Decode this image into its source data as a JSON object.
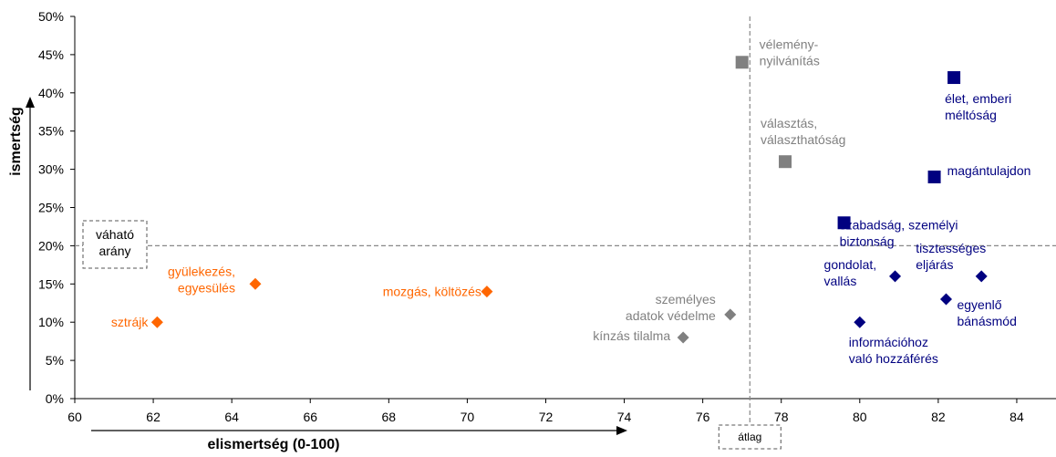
{
  "chart_data": {
    "type": "scatter",
    "xlabel": "elismertség (0-100)",
    "ylabel": "ismertség",
    "xlim": [
      60,
      85
    ],
    "ylim": [
      0,
      50
    ],
    "x_ticks": [
      60,
      62,
      64,
      66,
      68,
      70,
      72,
      74,
      76,
      78,
      80,
      82,
      84
    ],
    "y_ticks": [
      0,
      5,
      10,
      15,
      20,
      25,
      30,
      35,
      40,
      45,
      50
    ],
    "y_tick_suffix": "%",
    "grid": false,
    "legend": "none",
    "reference_lines": [
      {
        "axis": "x",
        "value": 77.2,
        "label": "átlag",
        "style": "dashed"
      },
      {
        "axis": "y",
        "value": 20,
        "label": "váható arány",
        "style": "dashed"
      }
    ],
    "colors": {
      "orange": "#ff6600",
      "gray": "#808080",
      "navy": "#000080"
    },
    "points": [
      {
        "label": "sztrájk",
        "x": 62.1,
        "y": 10,
        "color": "orange",
        "marker": "diamond"
      },
      {
        "label": "gyülekezés, egyesülés",
        "x": 64.6,
        "y": 15,
        "color": "orange",
        "marker": "diamond"
      },
      {
        "label": "mozgás, költözés",
        "x": 70.5,
        "y": 14,
        "color": "orange",
        "marker": "diamond"
      },
      {
        "label": "kínzás tilalma",
        "x": 75.5,
        "y": 8,
        "color": "gray",
        "marker": "diamond"
      },
      {
        "label": "személyes adatok védelme",
        "x": 76.7,
        "y": 11,
        "color": "gray",
        "marker": "diamond"
      },
      {
        "label": "vélemény-nyilvánítás",
        "x": 77.0,
        "y": 44,
        "color": "gray",
        "marker": "square"
      },
      {
        "label": "választás, választhatóság",
        "x": 78.1,
        "y": 31,
        "color": "gray",
        "marker": "square"
      },
      {
        "label": "szabadság, személyi biztonság",
        "x": 79.6,
        "y": 23,
        "color": "navy",
        "marker": "square"
      },
      {
        "label": "magántulajdon",
        "x": 81.9,
        "y": 29,
        "color": "navy",
        "marker": "square"
      },
      {
        "label": "élet, emberi méltóság",
        "x": 82.4,
        "y": 42,
        "color": "navy",
        "marker": "square"
      },
      {
        "label": "gondolat, vallás",
        "x": 80.9,
        "y": 16,
        "color": "navy",
        "marker": "diamond"
      },
      {
        "label": "tisztességes eljárás",
        "x": 83.1,
        "y": 16,
        "color": "navy",
        "marker": "diamond"
      },
      {
        "label": "egyenlő bánásmód",
        "x": 82.2,
        "y": 13,
        "color": "navy",
        "marker": "diamond"
      },
      {
        "label": "információhoz való hozzáférés",
        "x": 80.0,
        "y": 10,
        "color": "navy",
        "marker": "diamond"
      }
    ]
  }
}
